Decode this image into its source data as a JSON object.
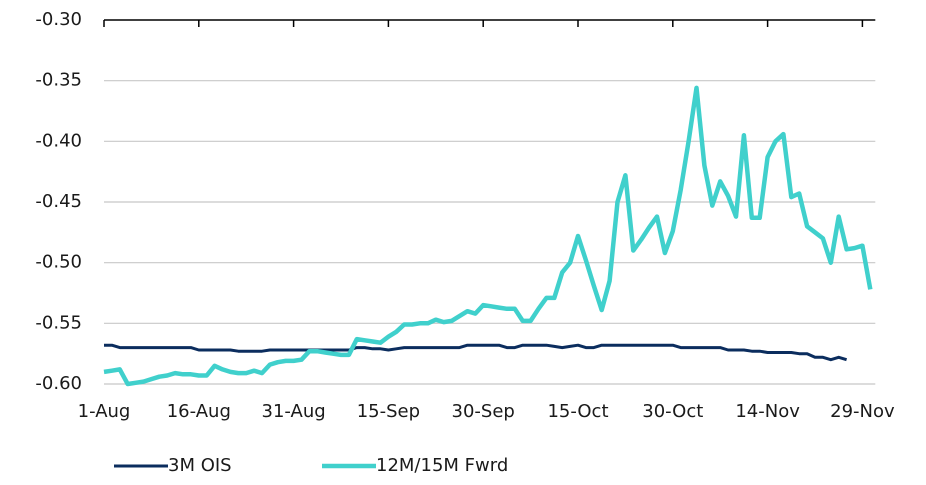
{
  "chart_data": {
    "type": "line",
    "categories": [
      "1-Aug",
      null,
      null,
      null,
      null,
      null,
      null,
      null,
      null,
      null,
      null,
      null,
      "16-Aug",
      null,
      null,
      null,
      null,
      null,
      null,
      null,
      null,
      null,
      null,
      null,
      "31-Aug",
      null,
      null,
      null,
      null,
      null,
      null,
      null,
      null,
      null,
      null,
      null,
      "15-Sep",
      null,
      null,
      null,
      null,
      null,
      null,
      null,
      null,
      null,
      null,
      null,
      "30-Sep",
      null,
      null,
      null,
      null,
      null,
      null,
      null,
      null,
      null,
      null,
      null,
      "15-Oct",
      null,
      null,
      null,
      null,
      null,
      null,
      null,
      null,
      null,
      null,
      null,
      "30-Oct",
      null,
      null,
      null,
      null,
      null,
      null,
      null,
      null,
      null,
      null,
      null,
      "14-Nov",
      null,
      null,
      null,
      null,
      null,
      null,
      null,
      null,
      null,
      null,
      null,
      "29-Nov",
      null
    ],
    "series": [
      {
        "name": "3M OIS",
        "color": "#0b2d5e",
        "values": [
          -0.568,
          -0.568,
          -0.57,
          -0.57,
          -0.57,
          -0.57,
          -0.57,
          -0.57,
          -0.57,
          -0.57,
          -0.57,
          -0.57,
          -0.572,
          -0.572,
          -0.572,
          -0.572,
          -0.572,
          -0.573,
          -0.573,
          -0.573,
          -0.573,
          -0.572,
          -0.572,
          -0.572,
          -0.572,
          -0.572,
          -0.572,
          -0.572,
          -0.572,
          -0.572,
          -0.572,
          -0.572,
          -0.57,
          -0.57,
          -0.571,
          -0.571,
          -0.572,
          -0.571,
          -0.57,
          -0.57,
          -0.57,
          -0.57,
          -0.57,
          -0.57,
          -0.57,
          -0.57,
          -0.568,
          -0.568,
          -0.568,
          -0.568,
          -0.568,
          -0.57,
          -0.57,
          -0.568,
          -0.568,
          -0.568,
          -0.568,
          -0.569,
          -0.57,
          -0.569,
          -0.568,
          -0.57,
          -0.57,
          -0.568,
          -0.568,
          -0.568,
          -0.568,
          -0.568,
          -0.568,
          -0.568,
          -0.568,
          -0.568,
          -0.568,
          -0.57,
          -0.57,
          -0.57,
          -0.57,
          -0.57,
          -0.57,
          -0.572,
          -0.572,
          -0.572,
          -0.573,
          -0.573,
          -0.574,
          -0.574,
          -0.574,
          -0.574,
          -0.575,
          -0.575,
          -0.578,
          -0.578,
          -0.58,
          -0.578,
          -0.58,
          null,
          null,
          null
        ]
      },
      {
        "name": "12M/15M Fwrd",
        "color": "#40d0cc",
        "values": [
          -0.59,
          -0.589,
          -0.588,
          -0.6,
          -0.599,
          -0.598,
          -0.596,
          -0.594,
          -0.593,
          -0.591,
          -0.592,
          -0.592,
          -0.593,
          -0.593,
          -0.585,
          -0.588,
          -0.59,
          -0.591,
          -0.591,
          -0.589,
          -0.591,
          -0.584,
          -0.582,
          -0.581,
          -0.581,
          -0.58,
          -0.573,
          -0.573,
          -0.574,
          -0.575,
          -0.576,
          -0.576,
          -0.563,
          -0.564,
          -0.565,
          -0.566,
          -0.561,
          -0.557,
          -0.551,
          -0.551,
          -0.55,
          -0.55,
          -0.547,
          -0.549,
          -0.548,
          -0.544,
          -0.54,
          -0.542,
          -0.535,
          -0.536,
          -0.537,
          -0.538,
          -0.538,
          -0.548,
          -0.548,
          -0.538,
          -0.529,
          -0.529,
          -0.508,
          -0.5,
          -0.478,
          -0.498,
          -0.519,
          -0.539,
          -0.515,
          -0.45,
          -0.428,
          -0.49,
          -0.481,
          -0.471,
          -0.462,
          -0.492,
          -0.474,
          -0.44,
          -0.4,
          -0.356,
          -0.42,
          -0.453,
          -0.433,
          -0.445,
          -0.462,
          -0.395,
          -0.463,
          -0.463,
          -0.413,
          -0.4,
          -0.394,
          -0.446,
          -0.443,
          -0.47,
          -0.475,
          -0.48,
          -0.5,
          -0.462,
          -0.489,
          -0.488,
          -0.486,
          -0.522
        ]
      }
    ],
    "ylim": [
      -0.6,
      -0.3
    ],
    "yticks": [
      {
        "value": -0.6,
        "label": "-0.60"
      },
      {
        "value": -0.55,
        "label": "-0.55"
      },
      {
        "value": -0.5,
        "label": "-0.50"
      },
      {
        "value": -0.45,
        "label": "-0.45"
      },
      {
        "value": -0.4,
        "label": "-0.40"
      },
      {
        "value": -0.35,
        "label": "-0.35"
      },
      {
        "value": -0.3,
        "label": "-0.30"
      }
    ],
    "grid": true,
    "legend": "bottom"
  }
}
